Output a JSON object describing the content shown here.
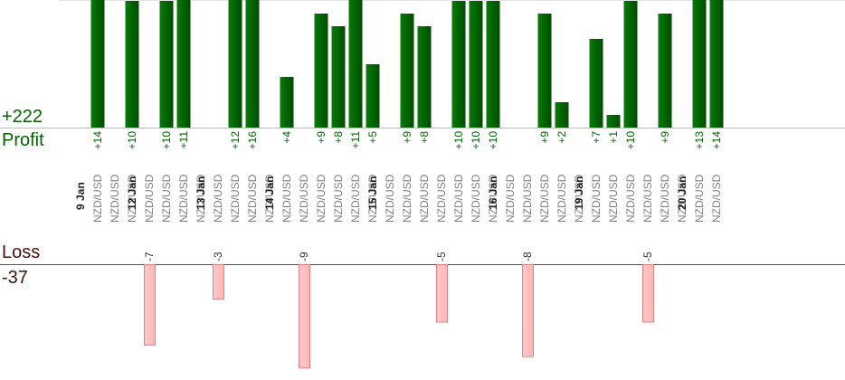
{
  "summary": {
    "profit_total": "+222",
    "profit_label": "Profit",
    "loss_label": "Loss",
    "loss_total": "-37"
  },
  "colors": {
    "profit_bar": "#006400",
    "profit_text": "#006400",
    "loss_bar_fill": "#ffb6b6",
    "loss_bar_stroke": "#e08080",
    "pair_text": "#808080",
    "date_text": "#222222",
    "axis_line": "#555555"
  },
  "chart_data": {
    "type": "bar",
    "profit_ylim": [
      0,
      10
    ],
    "loss_ylim": [
      -9,
      0
    ],
    "pair_label": "NZD/USD",
    "trades": [
      {
        "date": "9 Jan",
        "pair": "NZD/USD",
        "value": 14
      },
      {
        "date": "",
        "pair": "NZD/USD",
        "value": null
      },
      {
        "date": "",
        "pair": "NZD/USD",
        "value": 10
      },
      {
        "date": "12 Jan",
        "pair": "NZD/USD",
        "value": -7
      },
      {
        "date": "",
        "pair": "NZD/USD",
        "value": 10
      },
      {
        "date": "",
        "pair": "NZD/USD",
        "value": 11
      },
      {
        "date": "",
        "pair": "NZD/USD",
        "value": null
      },
      {
        "date": "13 Jan",
        "pair": "NZD/USD",
        "value": -3
      },
      {
        "date": "",
        "pair": "NZD/USD",
        "value": 12
      },
      {
        "date": "",
        "pair": "NZD/USD",
        "value": 16
      },
      {
        "date": "",
        "pair": "NZD/USD",
        "value": null
      },
      {
        "date": "14 Jan",
        "pair": "NZD/USD",
        "value": 4
      },
      {
        "date": "",
        "pair": "NZD/USD",
        "value": -9
      },
      {
        "date": "",
        "pair": "NZD/USD",
        "value": 9
      },
      {
        "date": "",
        "pair": "NZD/USD",
        "value": 8
      },
      {
        "date": "",
        "pair": "NZD/USD",
        "value": 11
      },
      {
        "date": "",
        "pair": "NZD/USD",
        "value": 5
      },
      {
        "date": "15 Jan",
        "pair": "NZD/USD",
        "value": null
      },
      {
        "date": "",
        "pair": "NZD/USD",
        "value": 9
      },
      {
        "date": "",
        "pair": "NZD/USD",
        "value": 8
      },
      {
        "date": "",
        "pair": "NZD/USD",
        "value": -5
      },
      {
        "date": "",
        "pair": "NZD/USD",
        "value": 10
      },
      {
        "date": "",
        "pair": "NZD/USD",
        "value": 10
      },
      {
        "date": "",
        "pair": "NZD/USD",
        "value": 10
      },
      {
        "date": "16 Jan",
        "pair": "NZD/USD",
        "value": null
      },
      {
        "date": "",
        "pair": "NZD/USD",
        "value": -8
      },
      {
        "date": "",
        "pair": "NZD/USD",
        "value": 9
      },
      {
        "date": "",
        "pair": "NZD/USD",
        "value": 2
      },
      {
        "date": "",
        "pair": "NZD/USD",
        "value": null
      },
      {
        "date": "19 Jan",
        "pair": "NZD/USD",
        "value": 7
      },
      {
        "date": "",
        "pair": "NZD/USD",
        "value": 1
      },
      {
        "date": "",
        "pair": "NZD/USD",
        "value": 10
      },
      {
        "date": "",
        "pair": "NZD/USD",
        "value": -5
      },
      {
        "date": "",
        "pair": "NZD/USD",
        "value": 9
      },
      {
        "date": "",
        "pair": "NZD/USD",
        "value": null
      },
      {
        "date": "20 Jan",
        "pair": "NZD/USD",
        "value": 13
      },
      {
        "date": "",
        "pair": "NZD/USD",
        "value": 14
      }
    ]
  }
}
